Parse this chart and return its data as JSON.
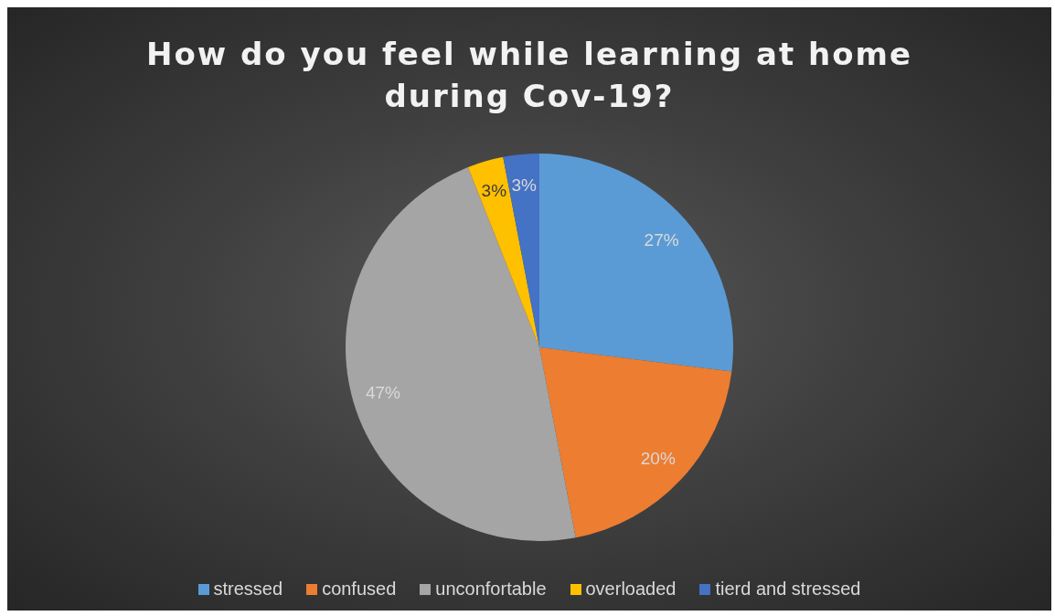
{
  "chart_data": {
    "type": "pie",
    "title": "How do you feel while learning at home during Cov-19?",
    "categories": [
      "stressed",
      "confused",
      "unconfortable",
      "overloaded",
      "tierd and stressed"
    ],
    "values": [
      27,
      20,
      47,
      3,
      3
    ],
    "colors": [
      "#5b9bd5",
      "#ed7d31",
      "#a5a5a5",
      "#ffc000",
      "#4472c4"
    ],
    "value_labels": [
      "27%",
      "20%",
      "47%",
      "3%",
      "3%"
    ],
    "legend": "bottom"
  }
}
